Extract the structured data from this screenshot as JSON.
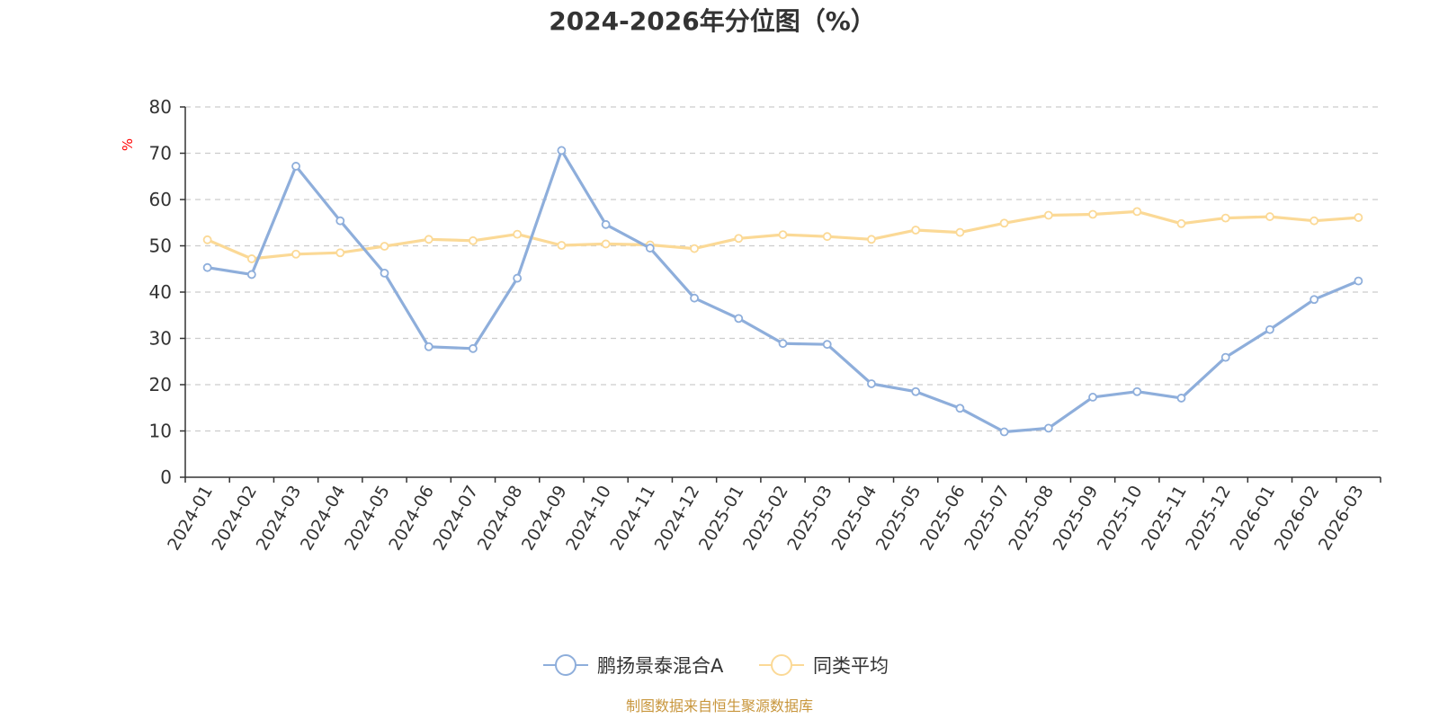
{
  "chart_data": {
    "type": "line",
    "title": "2024-2026年分位图（%）",
    "ylabel": "%",
    "ylim": [
      0,
      80
    ],
    "yticks": [
      0,
      10,
      20,
      30,
      40,
      50,
      60,
      70,
      80
    ],
    "grid": true,
    "legend_position": "bottom",
    "categories": [
      "2024-01",
      "2024-02",
      "2024-03",
      "2024-04",
      "2024-05",
      "2024-06",
      "2024-07",
      "2024-08",
      "2024-09",
      "2024-10",
      "2024-11",
      "2024-12",
      "2025-01",
      "2025-02",
      "2025-03",
      "2025-04",
      "2025-05",
      "2025-06",
      "2025-07",
      "2025-08",
      "2025-09",
      "2025-10",
      "2025-11",
      "2025-12",
      "2026-01",
      "2026-02",
      "2026-03"
    ],
    "series": [
      {
        "name": "鹏扬景泰混合A",
        "color": "#8eaedb",
        "values": [
          45.3,
          43.8,
          67.2,
          55.4,
          44.1,
          28.2,
          27.8,
          43.0,
          70.6,
          54.6,
          49.5,
          38.7,
          34.3,
          28.9,
          28.7,
          20.2,
          18.5,
          14.9,
          9.8,
          10.6,
          17.3,
          18.5,
          17.1,
          25.9,
          31.9,
          38.4,
          42.4
        ]
      },
      {
        "name": "同类平均",
        "color": "#fbd996",
        "values": [
          51.3,
          47.2,
          48.2,
          48.5,
          49.9,
          51.4,
          51.1,
          52.5,
          50.1,
          50.4,
          50.2,
          49.4,
          51.6,
          52.4,
          52.0,
          51.4,
          53.4,
          52.9,
          54.9,
          56.6,
          56.8,
          57.4,
          54.8,
          56.0,
          56.3,
          55.4,
          56.1
        ]
      }
    ]
  },
  "source_text": "制图数据来自恒生聚源数据库",
  "colors": {
    "axis": "#333333",
    "grid": "#cccccc",
    "unit": "#ff0000",
    "source": "#c8963c"
  }
}
